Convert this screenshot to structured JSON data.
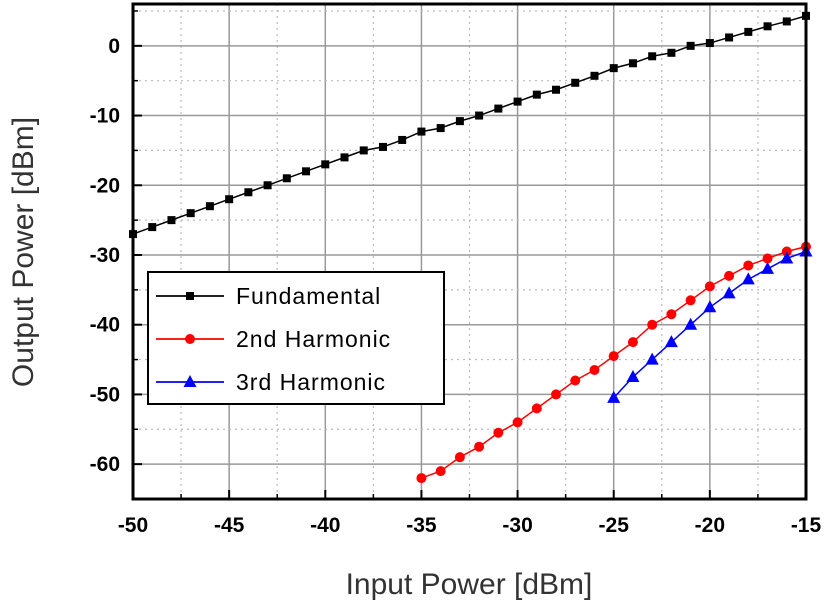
{
  "chart_data": {
    "type": "line",
    "xlabel": "Input Power [dBm]",
    "ylabel": "Output Power [dBm]",
    "xlim": [
      -50,
      -15
    ],
    "ylim": [
      -65,
      6
    ],
    "x_ticks": [
      -50,
      -45,
      -40,
      -35,
      -30,
      -25,
      -20,
      -15
    ],
    "y_ticks": [
      0,
      -10,
      -20,
      -30,
      -40,
      -50,
      -60
    ],
    "grid": true,
    "legend_position": "lower-left",
    "series": [
      {
        "name": "Fundamental",
        "color": "#000000",
        "marker": "square",
        "x": [
          -50,
          -49,
          -48,
          -47,
          -46,
          -45,
          -44,
          -43,
          -42,
          -41,
          -40,
          -39,
          -38,
          -37,
          -36,
          -35,
          -34,
          -33,
          -32,
          -31,
          -30,
          -29,
          -28,
          -27,
          -26,
          -25,
          -24,
          -23,
          -22,
          -21,
          -20,
          -19,
          -18,
          -17,
          -16,
          -15
        ],
        "y": [
          -27,
          -26,
          -25,
          -24,
          -23,
          -22,
          -21,
          -20,
          -19,
          -18,
          -17,
          -16,
          -15,
          -14.5,
          -13.5,
          -12.3,
          -11.8,
          -10.8,
          -10,
          -9,
          -8,
          -7,
          -6.3,
          -5.3,
          -4.3,
          -3.2,
          -2.5,
          -1.5,
          -1,
          0,
          0.4,
          1.2,
          2,
          2.8,
          3.5,
          4.3
        ]
      },
      {
        "name": "2nd Harmonic",
        "color": "#ff0000",
        "marker": "circle",
        "x": [
          -35,
          -34,
          -33,
          -32,
          -31,
          -30,
          -29,
          -28,
          -27,
          -26,
          -25,
          -24,
          -23,
          -22,
          -21,
          -20,
          -19,
          -18,
          -17,
          -16,
          -15
        ],
        "y": [
          -62,
          -61,
          -59,
          -57.5,
          -55.5,
          -54,
          -52,
          -50,
          -48,
          -46.5,
          -44.5,
          -42.5,
          -40,
          -38.5,
          -36.5,
          -34.5,
          -33,
          -31.5,
          -30.5,
          -29.5,
          -28.8
        ]
      },
      {
        "name": "3rd Harmonic",
        "color": "#0000ff",
        "marker": "triangle",
        "x": [
          -25,
          -24,
          -23,
          -22,
          -21,
          -20,
          -19,
          -18,
          -17,
          -16,
          -15
        ],
        "y": [
          -50.5,
          -47.5,
          -45,
          -42.5,
          -40,
          -37.5,
          -35.5,
          -33.5,
          -32,
          -30.5,
          -29.5
        ]
      }
    ]
  }
}
